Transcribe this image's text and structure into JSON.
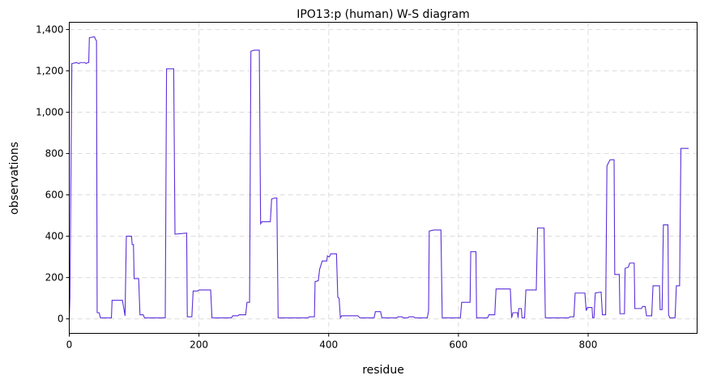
{
  "chart_data": {
    "type": "line",
    "title": "IPO13:p (human) W-S diagram",
    "xlabel": "residue",
    "ylabel": "observations",
    "xlim": [
      0,
      968
    ],
    "ylim": [
      -70,
      1435
    ],
    "xticks": [
      0,
      200,
      400,
      600,
      800
    ],
    "xtick_labels": [
      "0",
      "200",
      "400",
      "600",
      "800"
    ],
    "yticks": [
      0,
      200,
      400,
      600,
      800,
      1000,
      1200,
      1400
    ],
    "ytick_labels": [
      "0",
      "200",
      "400",
      "600",
      "800",
      "1,000",
      "1,200",
      "1,400"
    ],
    "grid": true,
    "line_color": "#5b2fd9",
    "series": [
      {
        "points": [
          [
            0,
            0
          ],
          [
            1,
            100
          ],
          [
            4,
            1235
          ],
          [
            11,
            1240
          ],
          [
            15,
            1235
          ],
          [
            17,
            1240
          ],
          [
            20,
            1240
          ],
          [
            24,
            1240
          ],
          [
            26,
            1235
          ],
          [
            28,
            1240
          ],
          [
            30,
            1240
          ],
          [
            31,
            1360
          ],
          [
            39,
            1365
          ],
          [
            40,
            1355
          ],
          [
            42,
            1345
          ],
          [
            43,
            30
          ],
          [
            46,
            30
          ],
          [
            48,
            5
          ],
          [
            65,
            5
          ],
          [
            66,
            90
          ],
          [
            82,
            90
          ],
          [
            86,
            15
          ],
          [
            88,
            400
          ],
          [
            96,
            400
          ],
          [
            97,
            360
          ],
          [
            99,
            360
          ],
          [
            100,
            195
          ],
          [
            107,
            195
          ],
          [
            109,
            20
          ],
          [
            114,
            20
          ],
          [
            116,
            5
          ],
          [
            148,
            5
          ],
          [
            150,
            1210
          ],
          [
            161,
            1210
          ],
          [
            163,
            410
          ],
          [
            181,
            415
          ],
          [
            182,
            10
          ],
          [
            189,
            10
          ],
          [
            191,
            135
          ],
          [
            198,
            135
          ],
          [
            200,
            140
          ],
          [
            218,
            140
          ],
          [
            220,
            5
          ],
          [
            250,
            5
          ],
          [
            252,
            15
          ],
          [
            260,
            15
          ],
          [
            262,
            20
          ],
          [
            272,
            20
          ],
          [
            274,
            80
          ],
          [
            278,
            80
          ],
          [
            280,
            1295
          ],
          [
            285,
            1300
          ],
          [
            293,
            1300
          ],
          [
            295,
            460
          ],
          [
            297,
            470
          ],
          [
            310,
            470
          ],
          [
            312,
            580
          ],
          [
            317,
            585
          ],
          [
            320,
            585
          ],
          [
            322,
            5
          ],
          [
            368,
            5
          ],
          [
            370,
            10
          ],
          [
            378,
            10
          ],
          [
            379,
            180
          ],
          [
            384,
            185
          ],
          [
            386,
            240
          ],
          [
            388,
            260
          ],
          [
            390,
            280
          ],
          [
            397,
            280
          ],
          [
            398,
            305
          ],
          [
            401,
            300
          ],
          [
            403,
            315
          ],
          [
            412,
            315
          ],
          [
            414,
            105
          ],
          [
            416,
            100
          ],
          [
            418,
            5
          ],
          [
            420,
            15
          ],
          [
            445,
            15
          ],
          [
            448,
            5
          ],
          [
            470,
            5
          ],
          [
            472,
            35
          ],
          [
            480,
            35
          ],
          [
            482,
            5
          ],
          [
            505,
            5
          ],
          [
            507,
            10
          ],
          [
            513,
            10
          ],
          [
            515,
            5
          ],
          [
            522,
            5
          ],
          [
            524,
            10
          ],
          [
            531,
            10
          ],
          [
            533,
            5
          ],
          [
            547,
            5
          ],
          [
            552,
            5
          ],
          [
            554,
            40
          ],
          [
            555,
            425
          ],
          [
            562,
            430
          ],
          [
            573,
            430
          ],
          [
            575,
            5
          ],
          [
            603,
            5
          ],
          [
            605,
            80
          ],
          [
            618,
            80
          ],
          [
            619,
            325
          ],
          [
            627,
            325
          ],
          [
            628,
            5
          ],
          [
            645,
            5
          ],
          [
            647,
            20
          ],
          [
            656,
            20
          ],
          [
            658,
            145
          ],
          [
            680,
            145
          ],
          [
            682,
            5
          ],
          [
            684,
            30
          ],
          [
            691,
            30
          ],
          [
            692,
            5
          ],
          [
            693,
            50
          ],
          [
            697,
            50
          ],
          [
            698,
            5
          ],
          [
            702,
            5
          ],
          [
            704,
            140
          ],
          [
            720,
            140
          ],
          [
            722,
            440
          ],
          [
            732,
            440
          ],
          [
            734,
            5
          ],
          [
            770,
            5
          ],
          [
            772,
            10
          ],
          [
            778,
            10
          ],
          [
            780,
            125
          ],
          [
            795,
            125
          ],
          [
            797,
            40
          ],
          [
            799,
            55
          ],
          [
            806,
            55
          ],
          [
            807,
            5
          ],
          [
            809,
            5
          ],
          [
            811,
            125
          ],
          [
            820,
            130
          ],
          [
            822,
            20
          ],
          [
            827,
            20
          ],
          [
            829,
            740
          ],
          [
            832,
            760
          ],
          [
            834,
            770
          ],
          [
            840,
            770
          ],
          [
            841,
            215
          ],
          [
            848,
            215
          ],
          [
            849,
            25
          ],
          [
            856,
            25
          ],
          [
            857,
            245
          ],
          [
            862,
            250
          ],
          [
            864,
            270
          ],
          [
            871,
            270
          ],
          [
            872,
            50
          ],
          [
            882,
            50
          ],
          [
            884,
            60
          ],
          [
            888,
            60
          ],
          [
            890,
            15
          ],
          [
            898,
            15
          ],
          [
            900,
            160
          ],
          [
            910,
            160
          ],
          [
            911,
            45
          ],
          [
            914,
            45
          ],
          [
            916,
            455
          ],
          [
            923,
            455
          ],
          [
            924,
            20
          ],
          [
            926,
            5
          ],
          [
            934,
            5
          ],
          [
            936,
            160
          ],
          [
            941,
            160
          ],
          [
            943,
            825
          ],
          [
            955,
            825
          ]
        ]
      }
    ]
  }
}
